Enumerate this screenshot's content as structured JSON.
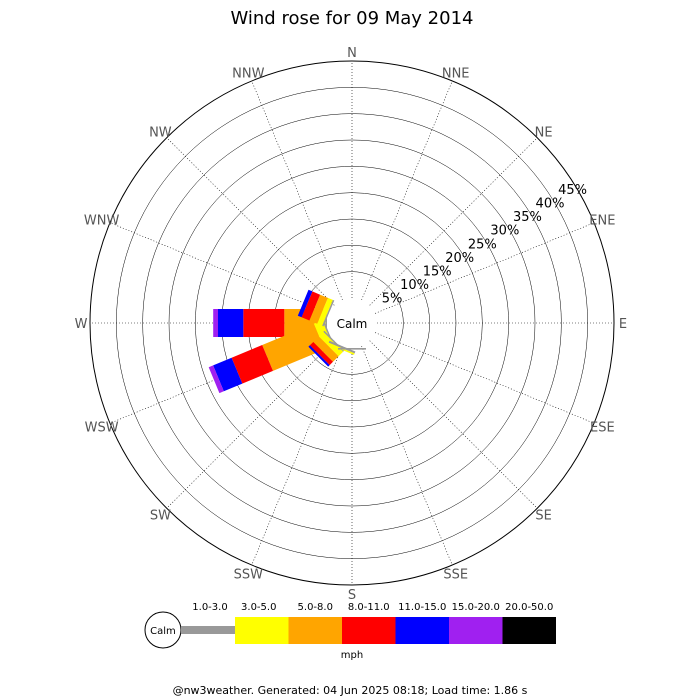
{
  "chart_data": {
    "type": "wind-rose",
    "title": "Wind rose for 09 May 2014",
    "center_label": "Calm",
    "unit_label": "mph",
    "footer": "@nw3weather. Generated: 04 Jun 2025 08:18; Load time: 1.86 s",
    "directions": [
      "N",
      "NNE",
      "NE",
      "ENE",
      "E",
      "ESE",
      "SE",
      "SSE",
      "S",
      "SSW",
      "SW",
      "WSW",
      "W",
      "WNW",
      "NW",
      "NNW"
    ],
    "rings": [
      5,
      10,
      15,
      20,
      25,
      30,
      35,
      40,
      45
    ],
    "ring_labels": [
      "5%",
      "10%",
      "15%",
      "20%",
      "25%",
      "30%",
      "35%",
      "40%",
      "45%"
    ],
    "speed_bins": [
      {
        "label": "1.0-3.0",
        "color": "#999999"
      },
      {
        "label": "3.0-5.0",
        "color": "#ffff00"
      },
      {
        "label": "5.0-8.0",
        "color": "#ffa500"
      },
      {
        "label": "8.0-11.0",
        "color": "#ff0000"
      },
      {
        "label": "11.0-15.0",
        "color": "#0000ff"
      },
      {
        "label": "15.0-20.0",
        "color": "#a020f0"
      },
      {
        "label": "20.0-50.0",
        "color": "#000000"
      }
    ],
    "series": [
      {
        "direction": "W",
        "values": [
          0.3,
          1.2,
          6.6,
          7.8,
          4.8,
          0.9,
          0
        ]
      },
      {
        "direction": "WSW",
        "values": [
          0.3,
          1.7,
          10.6,
          6.3,
          3.8,
          0.9,
          0
        ]
      },
      {
        "direction": "WNW",
        "values": [
          0.3,
          1.0,
          1.6,
          1.6,
          0.8,
          0,
          0
        ]
      },
      {
        "direction": "SW",
        "values": [
          0.3,
          1.2,
          1.5,
          0.9,
          0.4,
          0,
          0
        ]
      },
      {
        "direction": "SSW",
        "values": [
          0.4,
          0.3,
          0,
          0,
          0,
          0,
          0
        ]
      },
      {
        "direction": "S",
        "values": [
          0.3,
          0,
          0,
          0,
          0,
          0,
          0
        ]
      }
    ]
  }
}
